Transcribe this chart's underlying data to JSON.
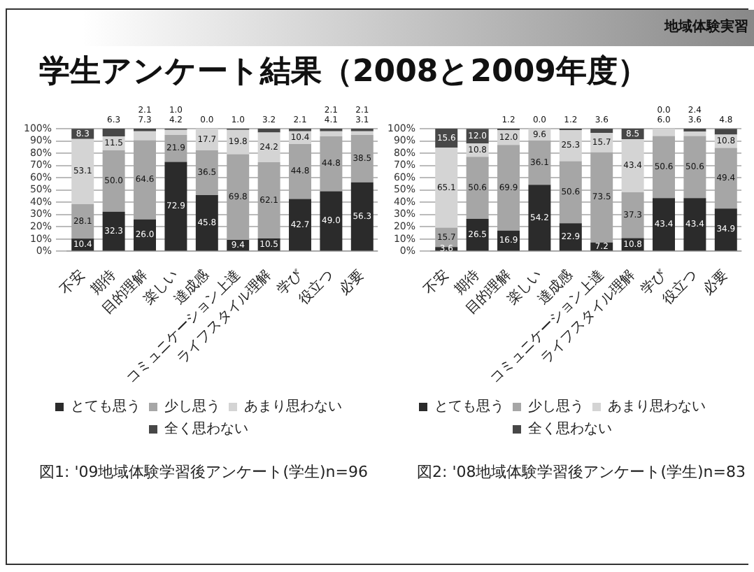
{
  "chart_data": [
    {
      "type": "bar",
      "title": "学生アンケート結果（2008と2009年度）",
      "stacked": true,
      "categories": [
        "不安",
        "期待",
        "目的理解",
        "楽しい",
        "達成感",
        "コミュニケーション上達",
        "ライフスタイル理解",
        "学び",
        "役立つ",
        "必要"
      ],
      "series": [
        {
          "name": "とても思う",
          "color": "#2b2b2b",
          "values": [
            10.4,
            32.3,
            26.0,
            72.9,
            45.8,
            9.4,
            10.5,
            42.7,
            49.0,
            56.3
          ],
          "value_labels": [
            "10.4",
            "32.3",
            "26.0",
            "72.9",
            "45.8",
            "9.4",
            "10.5",
            "42.7",
            "49.0",
            "56.3"
          ]
        },
        {
          "name": "少し思う",
          "color": "#a6a6a6",
          "values": [
            28.1,
            50.0,
            64.6,
            21.9,
            36.5,
            69.8,
            62.1,
            44.8,
            44.8,
            38.5
          ],
          "value_labels": [
            "28.1",
            "50.0",
            "64.6",
            "21.9",
            "36.5",
            "69.8",
            "62.1",
            "44.8",
            "44.8",
            "38.5"
          ]
        },
        {
          "name": "あまり思わない",
          "color": "#d4d4d4",
          "values": [
            53.1,
            11.5,
            7.3,
            4.2,
            17.7,
            19.8,
            24.2,
            10.4,
            4.1,
            3.1
          ],
          "value_labels": [
            "53.1",
            "11.5",
            "7.3",
            "4.2",
            "17.7",
            "19.8",
            "24.2",
            "10.4",
            "4.1",
            "3.1"
          ]
        },
        {
          "name": "全く思わない",
          "color": "#474747",
          "values": [
            8.3,
            6.3,
            2.1,
            1.0,
            0.0,
            1.0,
            3.2,
            2.1,
            2.1,
            2.1
          ],
          "value_labels": [
            "8.3",
            "6.3",
            "2.1",
            "1.0",
            "0.0",
            "1.0",
            "3.2",
            "2.1",
            "2.1",
            "2.1"
          ]
        }
      ],
      "ylim": [
        0,
        100
      ],
      "yticks": [
        {
          "value": 0,
          "label": "0%"
        },
        {
          "value": 10,
          "label": "10%"
        },
        {
          "value": 20,
          "label": "20%"
        },
        {
          "value": 30,
          "label": "30%"
        },
        {
          "value": 40,
          "label": "40%"
        },
        {
          "value": 50,
          "label": "50%"
        },
        {
          "value": 60,
          "label": "60%"
        },
        {
          "value": 70,
          "label": "70%"
        },
        {
          "value": 80,
          "label": "80%"
        },
        {
          "value": 90,
          "label": "90%"
        },
        {
          "value": 100,
          "label": "100%"
        }
      ],
      "grid": "y",
      "legend": "bottom",
      "annotations": [
        "地域体験実習",
        "図1: '09地域体験学習後アンケート(学生)n=96"
      ]
    },
    {
      "type": "bar",
      "stacked": true,
      "categories": [
        "不安",
        "期待",
        "目的理解",
        "楽しい",
        "達成感",
        "コミュニケーション上達",
        "ライフスタイル理解",
        "学び",
        "役立つ",
        "必要"
      ],
      "series": [
        {
          "name": "とても思う",
          "color": "#2b2b2b",
          "values": [
            3.6,
            26.5,
            16.9,
            54.2,
            22.9,
            7.2,
            10.8,
            43.4,
            43.4,
            34.9
          ],
          "value_labels": [
            "3.6",
            "26.5",
            "16.9",
            "54.2",
            "22.9",
            "7.2",
            "10.8",
            "43.4",
            "43.4",
            "34.9"
          ]
        },
        {
          "name": "少し思う",
          "color": "#a6a6a6",
          "values": [
            15.7,
            50.6,
            69.9,
            36.1,
            50.6,
            73.5,
            37.3,
            50.6,
            50.6,
            49.4
          ],
          "value_labels": [
            "15.7",
            "50.6",
            "69.9",
            "36.1",
            "50.6",
            "73.5",
            "37.3",
            "50.6",
            "50.6",
            "49.4"
          ]
        },
        {
          "name": "あまり思わない",
          "color": "#d4d4d4",
          "values": [
            65.1,
            10.8,
            12.0,
            9.6,
            25.3,
            15.7,
            43.4,
            6.0,
            3.6,
            10.8
          ],
          "value_labels": [
            "65.1",
            "10.8",
            "12.0",
            "9.6",
            "25.3",
            "15.7",
            "43.4",
            "6.0",
            "3.6",
            "10.8"
          ]
        },
        {
          "name": "全く思わない",
          "color": "#474747",
          "values": [
            15.6,
            12.0,
            1.2,
            0.0,
            1.2,
            3.6,
            8.5,
            0.0,
            2.4,
            4.8
          ],
          "value_labels": [
            "15.6",
            "12.0",
            "1.2",
            "0.0",
            "1.2",
            "3.6",
            "8.5",
            "0.0",
            "2.4",
            "4.8"
          ]
        }
      ],
      "ylim": [
        0,
        100
      ],
      "yticks": [
        {
          "value": 0,
          "label": "0%"
        },
        {
          "value": 10,
          "label": "10%"
        },
        {
          "value": 20,
          "label": "20%"
        },
        {
          "value": 30,
          "label": "30%"
        },
        {
          "value": 40,
          "label": "40%"
        },
        {
          "value": 50,
          "label": "50%"
        },
        {
          "value": 60,
          "label": "60%"
        },
        {
          "value": 70,
          "label": "70%"
        },
        {
          "value": 80,
          "label": "80%"
        },
        {
          "value": 90,
          "label": "90%"
        },
        {
          "value": 100,
          "label": "100%"
        }
      ],
      "grid": "y",
      "legend": "bottom",
      "annotations": [
        "図2: '08地域体験学習後アンケート(学生)n=83"
      ]
    }
  ]
}
